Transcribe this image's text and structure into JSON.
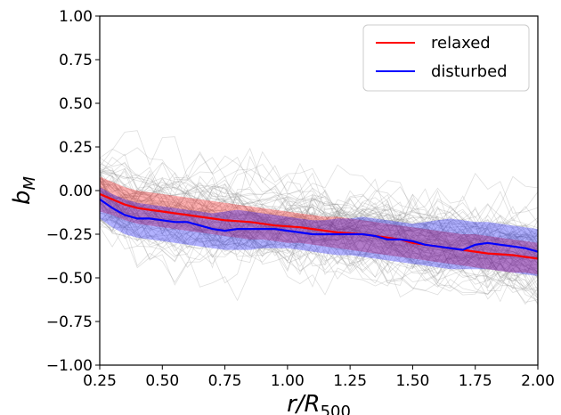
{
  "chart_data": {
    "type": "line",
    "xlabel": "r/R",
    "xlabel_sub": "500",
    "ylabel": "b",
    "ylabel_sub": "M",
    "xlim": [
      0.25,
      2.0
    ],
    "ylim": [
      -1.0,
      1.0
    ],
    "xticks": [
      0.25,
      0.5,
      0.75,
      1.0,
      1.25,
      1.5,
      1.75,
      2.0
    ],
    "yticks": [
      1.0,
      0.75,
      0.5,
      0.25,
      0.0,
      -0.25,
      -0.5,
      -0.75,
      -1.0
    ],
    "xtick_labels": [
      "0.25",
      "0.50",
      "0.75",
      "1.00",
      "1.25",
      "1.50",
      "1.75",
      "2.00"
    ],
    "ytick_labels": [
      "1.00",
      "0.75",
      "0.50",
      "0.25",
      "0.00",
      "−0.25",
      "−0.50",
      "−0.75",
      "−1.00"
    ],
    "grid": false,
    "legend_position": "top-right",
    "colors": {
      "relaxed": "#ff0000",
      "disturbed": "#0000ff",
      "background_lines": "#8c8c8c"
    },
    "x": [
      0.25,
      0.3,
      0.35,
      0.4,
      0.45,
      0.5,
      0.55,
      0.6,
      0.65,
      0.7,
      0.75,
      0.8,
      0.85,
      0.9,
      0.95,
      1.0,
      1.05,
      1.1,
      1.15,
      1.2,
      1.25,
      1.3,
      1.35,
      1.4,
      1.45,
      1.5,
      1.55,
      1.6,
      1.65,
      1.7,
      1.75,
      1.8,
      1.85,
      1.9,
      1.95,
      2.0
    ],
    "series": [
      {
        "name": "relaxed",
        "color": "#ff0000",
        "values": [
          -0.02,
          -0.05,
          -0.08,
          -0.1,
          -0.11,
          -0.12,
          -0.13,
          -0.14,
          -0.15,
          -0.16,
          -0.17,
          -0.175,
          -0.18,
          -0.19,
          -0.2,
          -0.205,
          -0.21,
          -0.22,
          -0.23,
          -0.24,
          -0.245,
          -0.25,
          -0.26,
          -0.27,
          -0.28,
          -0.3,
          -0.31,
          -0.32,
          -0.33,
          -0.34,
          -0.35,
          -0.36,
          -0.365,
          -0.37,
          -0.38,
          -0.39
        ],
        "band_upper": [
          0.08,
          0.05,
          0.02,
          0.0,
          -0.01,
          -0.02,
          -0.03,
          -0.04,
          -0.05,
          -0.06,
          -0.07,
          -0.08,
          -0.09,
          -0.1,
          -0.11,
          -0.12,
          -0.13,
          -0.14,
          -0.15,
          -0.15,
          -0.16,
          -0.17,
          -0.18,
          -0.19,
          -0.2,
          -0.21,
          -0.22,
          -0.23,
          -0.24,
          -0.25,
          -0.25,
          -0.26,
          -0.27,
          -0.28,
          -0.29,
          -0.3
        ],
        "band_lower": [
          -0.12,
          -0.14,
          -0.17,
          -0.19,
          -0.2,
          -0.21,
          -0.22,
          -0.23,
          -0.24,
          -0.25,
          -0.26,
          -0.27,
          -0.28,
          -0.28,
          -0.29,
          -0.3,
          -0.3,
          -0.31,
          -0.32,
          -0.33,
          -0.34,
          -0.35,
          -0.36,
          -0.37,
          -0.38,
          -0.39,
          -0.4,
          -0.41,
          -0.42,
          -0.43,
          -0.44,
          -0.45,
          -0.46,
          -0.47,
          -0.47,
          -0.48
        ]
      },
      {
        "name": "disturbed",
        "color": "#0000ff",
        "values": [
          -0.05,
          -0.1,
          -0.14,
          -0.16,
          -0.16,
          -0.17,
          -0.18,
          -0.18,
          -0.2,
          -0.22,
          -0.23,
          -0.22,
          -0.22,
          -0.22,
          -0.22,
          -0.23,
          -0.24,
          -0.25,
          -0.25,
          -0.25,
          -0.25,
          -0.25,
          -0.26,
          -0.28,
          -0.28,
          -0.29,
          -0.31,
          -0.32,
          -0.33,
          -0.34,
          -0.31,
          -0.3,
          -0.31,
          -0.32,
          -0.33,
          -0.35
        ],
        "band_upper": [
          0.02,
          -0.02,
          -0.05,
          -0.07,
          -0.08,
          -0.09,
          -0.1,
          -0.11,
          -0.12,
          -0.13,
          -0.12,
          -0.11,
          -0.12,
          -0.13,
          -0.14,
          -0.15,
          -0.16,
          -0.17,
          -0.17,
          -0.16,
          -0.16,
          -0.15,
          -0.16,
          -0.17,
          -0.18,
          -0.19,
          -0.18,
          -0.17,
          -0.16,
          -0.17,
          -0.18,
          -0.18,
          -0.19,
          -0.2,
          -0.21,
          -0.22
        ],
        "band_lower": [
          -0.16,
          -0.21,
          -0.25,
          -0.27,
          -0.28,
          -0.29,
          -0.3,
          -0.31,
          -0.32,
          -0.33,
          -0.34,
          -0.34,
          -0.34,
          -0.33,
          -0.33,
          -0.33,
          -0.34,
          -0.35,
          -0.36,
          -0.37,
          -0.37,
          -0.38,
          -0.39,
          -0.4,
          -0.41,
          -0.42,
          -0.43,
          -0.44,
          -0.45,
          -0.45,
          -0.45,
          -0.45,
          -0.46,
          -0.47,
          -0.48,
          -0.49
        ]
      }
    ]
  }
}
